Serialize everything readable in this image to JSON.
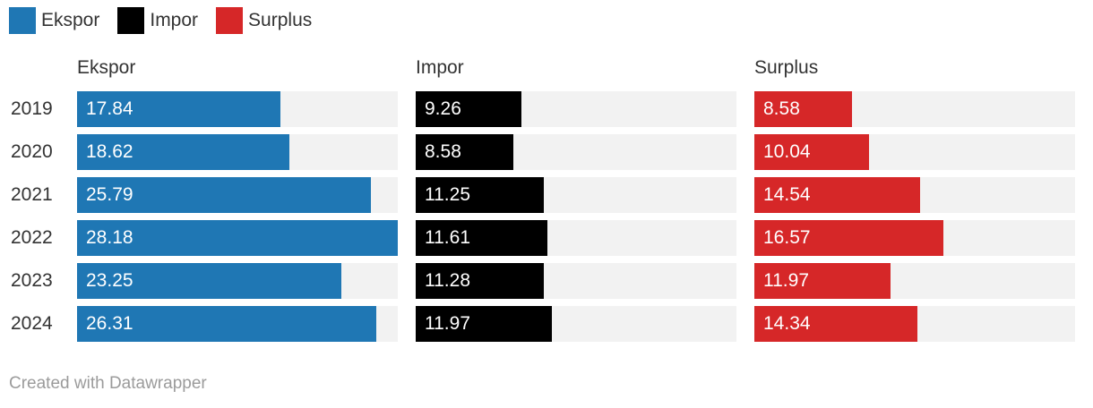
{
  "legend": [
    {
      "label": "Ekspor",
      "color": "#1f77b4"
    },
    {
      "label": "Impor",
      "color": "#000000"
    },
    {
      "label": "Surplus",
      "color": "#d62728"
    }
  ],
  "footer": "Created with Datawrapper",
  "chart_data": {
    "type": "bar",
    "orientation": "horizontal",
    "categories": [
      "2019",
      "2020",
      "2021",
      "2022",
      "2023",
      "2024"
    ],
    "xlim": [
      0,
      28.18
    ],
    "series": [
      {
        "name": "Ekspor",
        "color": "#1f77b4",
        "values": [
          17.84,
          18.62,
          25.79,
          28.18,
          23.25,
          26.31
        ],
        "labels": [
          "17.84",
          "18.62",
          "25.79",
          "28.18",
          "23.25",
          "26.31"
        ]
      },
      {
        "name": "Impor",
        "color": "#000000",
        "values": [
          9.26,
          8.58,
          11.25,
          11.61,
          11.28,
          11.97
        ],
        "labels": [
          "9.26",
          "8.58",
          "11.25",
          "11.61",
          "11.28",
          "11.97"
        ]
      },
      {
        "name": "Surplus",
        "color": "#d62728",
        "values": [
          8.58,
          10.04,
          14.54,
          16.57,
          11.97,
          14.34
        ],
        "labels": [
          "8.58",
          "10.04",
          "14.54",
          "16.57",
          "11.97",
          "14.34"
        ]
      }
    ]
  }
}
